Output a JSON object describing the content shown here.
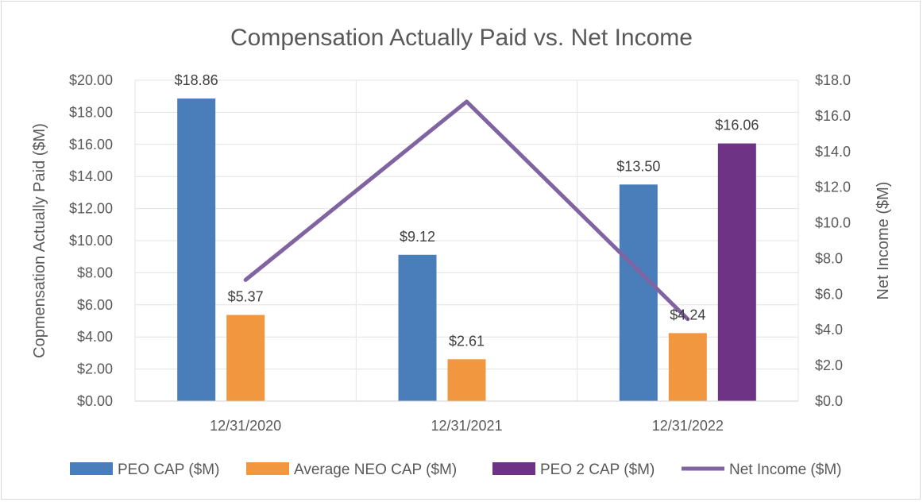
{
  "chart_data": {
    "type": "bar",
    "title": "Compensation Actually Paid vs. Net Income",
    "ylabel": "Copmensation Actually Paid ($M)",
    "y2label": "Net Income ($M)",
    "categories": [
      "12/31/2020",
      "12/31/2021",
      "12/31/2022"
    ],
    "ylim": [
      0,
      20
    ],
    "y2lim": [
      0,
      18
    ],
    "y_ticks": [
      "$0.00",
      "$2.00",
      "$4.00",
      "$6.00",
      "$8.00",
      "$10.00",
      "$12.00",
      "$14.00",
      "$16.00",
      "$18.00",
      "$20.00"
    ],
    "y2_ticks": [
      "$0.0",
      "$2.0",
      "$4.0",
      "$6.0",
      "$8.0",
      "$10.0",
      "$12.0",
      "$14.0",
      "$16.0",
      "$18.0"
    ],
    "series": [
      {
        "name": "PEO CAP ($M)",
        "type": "bar",
        "axis": "left",
        "color": "#4a7ebb",
        "values": [
          18.86,
          9.12,
          13.5
        ],
        "labels": [
          "$18.86",
          "$9.12",
          "$13.50"
        ]
      },
      {
        "name": "Average NEO CAP ($M)",
        "type": "bar",
        "axis": "left",
        "color": "#f0973f",
        "values": [
          5.37,
          2.61,
          4.24
        ],
        "labels": [
          "$5.37",
          "$2.61",
          "$4.24"
        ]
      },
      {
        "name": "PEO 2 CAP ($M)",
        "type": "bar",
        "axis": "left",
        "color": "#6f3386",
        "values": [
          null,
          null,
          16.06
        ],
        "labels": [
          null,
          null,
          "$16.06"
        ]
      },
      {
        "name": "Net Income ($M)",
        "type": "line",
        "axis": "right",
        "color": "#8064a2",
        "values": [
          6.8,
          16.8,
          4.6
        ]
      }
    ],
    "grid": true,
    "legend_position": "bottom"
  }
}
